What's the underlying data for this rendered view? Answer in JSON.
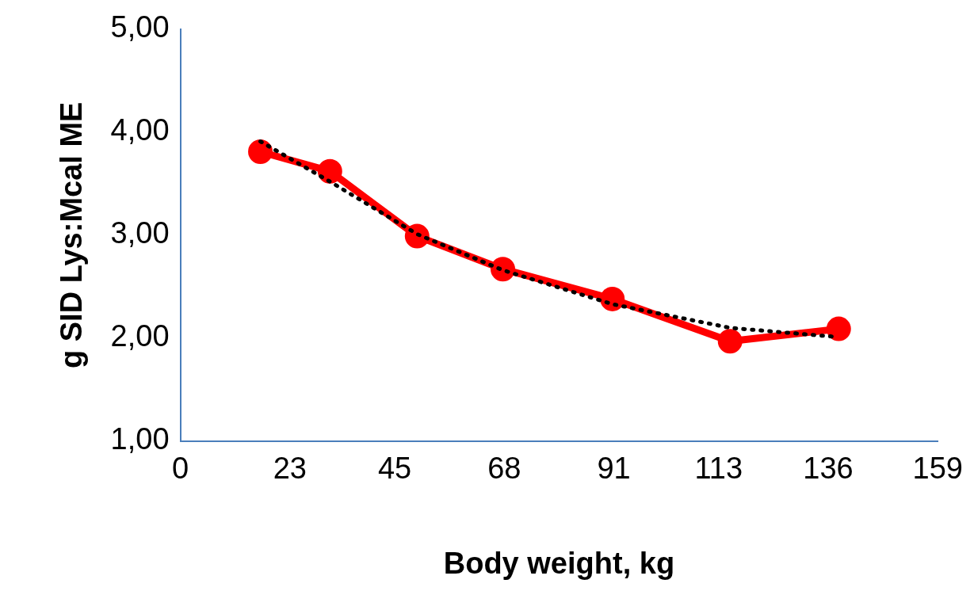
{
  "chart_data": {
    "type": "line",
    "xlabel": "Body weight, kg",
    "ylabel": "g SID Lys:Mcal ME",
    "xlim": [
      0,
      159
    ],
    "xticks": [
      0,
      23,
      45,
      68,
      91,
      113,
      136,
      159
    ],
    "ylim": [
      1,
      5
    ],
    "yticks": [
      {
        "value": 1,
        "label": "1,00"
      },
      {
        "value": 2,
        "label": "2,00"
      },
      {
        "value": 3,
        "label": "3,00"
      },
      {
        "value": 4,
        "label": "4,00"
      },
      {
        "value": 5,
        "label": "5,00"
      }
    ],
    "grid": false,
    "legend": false,
    "series": [
      {
        "color": "#000000",
        "line_style": "dotted",
        "marker": "none",
        "x": [
          16.8,
          31.4,
          49.7,
          67.7,
          90.7,
          115.4,
          138.2
        ],
        "values": [
          3.91,
          3.52,
          3.01,
          2.66,
          2.33,
          2.1,
          2.01
        ]
      },
      {
        "color": "#ff0000",
        "line_style": "solid",
        "marker": "circle",
        "x": [
          16.8,
          31.4,
          49.7,
          67.7,
          90.7,
          115.4,
          138.2
        ],
        "values": [
          3.81,
          3.62,
          2.99,
          2.67,
          2.38,
          1.97,
          2.09
        ]
      }
    ]
  }
}
